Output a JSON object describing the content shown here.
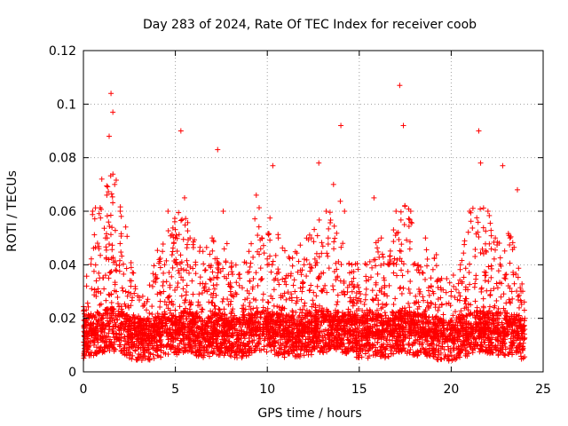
{
  "chart_data": {
    "type": "scatter",
    "title": "Day 283 of 2024, Rate Of TEC Index for receiver coob",
    "xlabel": "GPS time / hours",
    "ylabel": "ROTI / TECUs",
    "xlim": [
      0,
      25
    ],
    "ylim": [
      0,
      0.12
    ],
    "xticks": [
      0,
      5,
      10,
      15,
      20,
      25
    ],
    "xtick_labels": [
      "0",
      "5",
      "10",
      "15",
      "20",
      "25"
    ],
    "yticks": [
      0,
      0.02,
      0.04,
      0.06,
      0.08,
      0.1,
      0.12
    ],
    "ytick_labels": [
      "0",
      "0.02",
      "0.04",
      "0.06",
      "0.08",
      "0.1",
      "0.12"
    ],
    "grid": true,
    "marker": "+",
    "color": "#ff0000",
    "series": [
      {
        "name": "ROTI",
        "x": [
          0.1,
          0.3,
          0.5,
          0.8,
          1.0,
          1.2,
          1.4,
          1.5,
          1.6,
          1.7,
          1.8,
          2.0,
          2.3,
          2.6,
          3.0,
          3.5,
          4.0,
          4.3,
          4.6,
          5.0,
          5.3,
          5.5,
          5.8,
          6.1,
          6.5,
          7.0,
          7.3,
          7.6,
          8.0,
          8.5,
          9.0,
          9.4,
          9.7,
          10.0,
          10.3,
          10.6,
          11.0,
          11.5,
          12.0,
          12.4,
          12.8,
          13.2,
          13.6,
          14.0,
          14.2,
          14.6,
          15.0,
          15.4,
          15.8,
          16.2,
          16.6,
          17.0,
          17.2,
          17.4,
          17.8,
          18.2,
          18.6,
          19.0,
          19.5,
          20.0,
          20.5,
          21.0,
          21.5,
          21.6,
          22.0,
          22.4,
          22.8,
          23.2,
          23.6,
          24.0
        ],
        "y": [
          0.012,
          0.02,
          0.06,
          0.03,
          0.072,
          0.05,
          0.088,
          0.104,
          0.097,
          0.07,
          0.04,
          0.06,
          0.03,
          0.018,
          0.015,
          0.02,
          0.035,
          0.045,
          0.06,
          0.05,
          0.09,
          0.065,
          0.05,
          0.04,
          0.045,
          0.05,
          0.083,
          0.06,
          0.03,
          0.035,
          0.045,
          0.066,
          0.05,
          0.04,
          0.077,
          0.05,
          0.035,
          0.03,
          0.04,
          0.05,
          0.078,
          0.06,
          0.07,
          0.092,
          0.06,
          0.04,
          0.03,
          0.04,
          0.065,
          0.05,
          0.04,
          0.06,
          0.107,
          0.092,
          0.06,
          0.04,
          0.05,
          0.03,
          0.025,
          0.03,
          0.04,
          0.06,
          0.09,
          0.078,
          0.06,
          0.05,
          0.077,
          0.05,
          0.068,
          0.02
        ]
      }
    ],
    "envelope": {
      "description_free_note": "",
      "hours": [
        0,
        0.5,
        1,
        1.5,
        2,
        2.5,
        3,
        3.5,
        4,
        4.5,
        5,
        5.5,
        6,
        6.5,
        7,
        7.5,
        8,
        8.5,
        9,
        9.5,
        10,
        10.5,
        11,
        11.5,
        12,
        12.5,
        13,
        13.5,
        14,
        14.5,
        15,
        15.5,
        16,
        16.5,
        17,
        17.5,
        18,
        18.5,
        19,
        19.5,
        20,
        20.5,
        21,
        21.5,
        22,
        22.5,
        23,
        23.5,
        24
      ],
      "upper": [
        0.025,
        0.06,
        0.07,
        0.075,
        0.07,
        0.045,
        0.028,
        0.03,
        0.045,
        0.055,
        0.06,
        0.06,
        0.05,
        0.045,
        0.05,
        0.055,
        0.045,
        0.04,
        0.045,
        0.065,
        0.06,
        0.055,
        0.045,
        0.045,
        0.05,
        0.055,
        0.06,
        0.06,
        0.065,
        0.05,
        0.04,
        0.045,
        0.05,
        0.04,
        0.06,
        0.065,
        0.055,
        0.045,
        0.05,
        0.035,
        0.035,
        0.04,
        0.06,
        0.065,
        0.06,
        0.05,
        0.05,
        0.06,
        0.025
      ],
      "base": [
        0.013,
        0.014,
        0.015,
        0.016,
        0.015,
        0.013,
        0.012,
        0.012,
        0.013,
        0.014,
        0.014,
        0.015,
        0.014,
        0.013,
        0.014,
        0.014,
        0.013,
        0.013,
        0.014,
        0.015,
        0.015,
        0.014,
        0.013,
        0.013,
        0.014,
        0.014,
        0.015,
        0.015,
        0.015,
        0.014,
        0.013,
        0.013,
        0.014,
        0.013,
        0.015,
        0.015,
        0.014,
        0.013,
        0.013,
        0.012,
        0.012,
        0.013,
        0.014,
        0.015,
        0.015,
        0.014,
        0.014,
        0.014,
        0.012
      ]
    }
  }
}
